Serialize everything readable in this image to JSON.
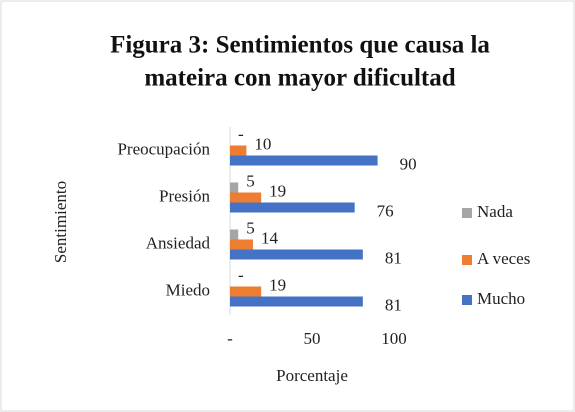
{
  "chart_data": {
    "type": "hbar",
    "title": [
      "Figura 3: Sentimientos que causa la",
      "mateira con mayor dificultad"
    ],
    "x_label": "Porcentaje",
    "y_label": "Sentimiento",
    "categories": [
      "Preocupación",
      "Presión",
      "Ansiedad",
      "Miedo"
    ],
    "series": [
      {
        "name": "Nada",
        "color": "#a5a5a5",
        "values": [
          0,
          5,
          5,
          0
        ],
        "value_labels": [
          "-",
          "5",
          "5",
          "-"
        ]
      },
      {
        "name": "A veces",
        "color": "#ed7d31",
        "values": [
          10,
          19,
          14,
          19
        ]
      },
      {
        "name": "Mucho",
        "color": "#4472c4",
        "values": [
          90,
          76,
          81,
          81
        ]
      }
    ],
    "xlim": [
      0,
      100
    ],
    "xticks": [
      {
        "value": 0,
        "label": "-"
      },
      50,
      100
    ],
    "grid": false,
    "legend": "right"
  }
}
